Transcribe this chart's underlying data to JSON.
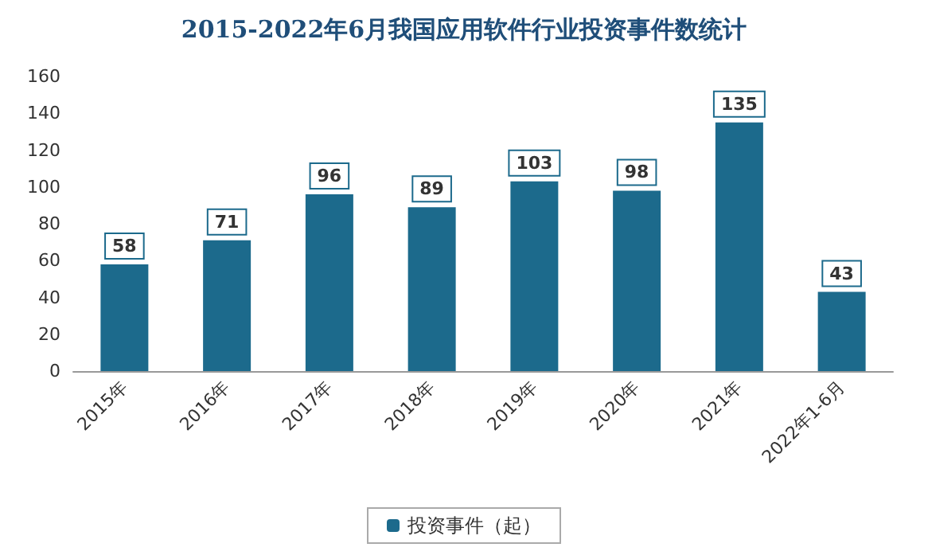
{
  "chart_data": {
    "type": "bar",
    "title": "2015-2022年6月我国应用软件行业投资事件数统计",
    "categories": [
      "2015年",
      "2016年",
      "2017年",
      "2018年",
      "2019年",
      "2020年",
      "2021年",
      "2022年1-6月"
    ],
    "series": [
      {
        "name": "投资事件（起）",
        "color": "#1c6a8c",
        "values": [
          58,
          71,
          96,
          89,
          103,
          98,
          135,
          43
        ]
      }
    ],
    "ylim": [
      0,
      160
    ],
    "yticks": [
      0,
      20,
      40,
      60,
      80,
      100,
      120,
      140,
      160
    ],
    "grid": false,
    "legend": "bottom",
    "data_labels": true
  }
}
